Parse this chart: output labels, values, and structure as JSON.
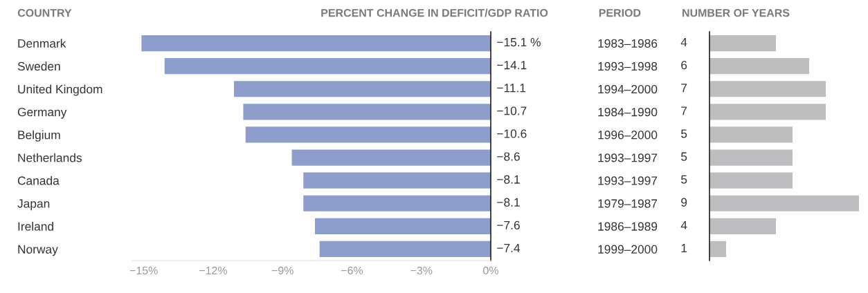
{
  "chart_data": [
    {
      "type": "bar",
      "orientation": "horizontal",
      "title": "PERCENT CHANGE IN DEFICIT/GDP RATIO",
      "ylabel": "COUNTRY",
      "categories": [
        "Denmark",
        "Sweden",
        "United Kingdom",
        "Germany",
        "Belgium",
        "Netherlands",
        "Canada",
        "Japan",
        "Ireland",
        "Norway"
      ],
      "values": [
        -15.1,
        -14.1,
        -11.1,
        -10.7,
        -10.6,
        -8.6,
        -8.1,
        -8.1,
        -7.6,
        -7.4
      ],
      "value_labels": [
        "−15.1 %",
        "−14.1",
        "−11.1",
        "−10.7",
        "−10.6",
        "−8.6",
        "−8.1",
        "−8.1",
        "−7.6",
        "−7.4"
      ],
      "color": "#8d9dcc",
      "xlim": [
        -15.5,
        0
      ],
      "xticks": [
        {
          "value": -15,
          "label": "−15%"
        },
        {
          "value": -12,
          "label": "−12%"
        },
        {
          "value": -9,
          "label": "−9%"
        },
        {
          "value": -6,
          "label": "−6%"
        },
        {
          "value": -3,
          "label": "−3%"
        },
        {
          "value": 0,
          "label": "0%"
        }
      ],
      "grid": false,
      "legend": false
    },
    {
      "type": "bar",
      "orientation": "horizontal",
      "title": "NUMBER OF YEARS",
      "ylabel": "PERIOD",
      "categories": [
        "1983–1986",
        "1993–1998",
        "1994–2000",
        "1984–1990",
        "1996–2000",
        "1993–1997",
        "1993–1997",
        "1979–1987",
        "1986–1989",
        "1999–2000"
      ],
      "values": [
        4,
        6,
        7,
        7,
        5,
        5,
        5,
        9,
        4,
        1
      ],
      "data_labels": true,
      "color": "#bebec0",
      "xlim": [
        0,
        9
      ],
      "tick_labels": "y",
      "grid": false,
      "legend": false
    }
  ]
}
